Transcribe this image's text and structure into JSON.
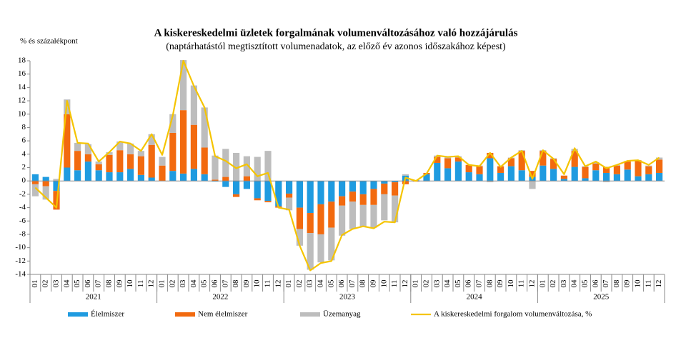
{
  "chart_data": {
    "type": "bar",
    "stacked": true,
    "title": "A kiskereskedelmi üzletek forgalmának volumenváltozásához való hozzájárulás",
    "subtitle": "(naptárhatástól megtisztított volumenadatok, az előző év azonos időszakához képest)",
    "y_label": "% és százalékpont",
    "years": [
      "2021",
      "2022",
      "2023",
      "2024",
      "2025"
    ],
    "categories": [
      "01",
      "02",
      "03",
      "04",
      "05",
      "06",
      "07",
      "08",
      "09",
      "10",
      "11",
      "12",
      "01",
      "02",
      "03",
      "04",
      "05",
      "06",
      "07",
      "08",
      "09",
      "10",
      "11",
      "12",
      "01",
      "02",
      "03",
      "04",
      "05",
      "06",
      "07",
      "08",
      "09",
      "10",
      "11",
      "12",
      "01",
      "02",
      "03",
      "04",
      "05",
      "06",
      "07",
      "08",
      "09",
      "10",
      "11",
      "12",
      "01",
      "02",
      "03",
      "04",
      "05",
      "06",
      "07",
      "08",
      "09",
      "10",
      "11",
      "12"
    ],
    "ylim": [
      -14,
      18
    ],
    "yticks": [
      -14,
      -12,
      -10,
      -8,
      -6,
      -4,
      -2,
      0,
      2,
      4,
      6,
      8,
      10,
      12,
      14,
      16,
      18
    ],
    "grid": false,
    "legend": "bottom",
    "series": [
      {
        "name": "Élelmiszer",
        "color": "#1f9be0",
        "values": [
          1.0,
          0.6,
          -1.5,
          2.0,
          1.6,
          2.9,
          1.6,
          1.3,
          1.3,
          1.8,
          0.9,
          0.5,
          0.0,
          1.5,
          1.1,
          1.8,
          1.0,
          -0.1,
          -0.9,
          -2.0,
          -1.2,
          -2.6,
          -3.0,
          -3.8,
          -1.9,
          -4.0,
          -4.8,
          -3.5,
          -3.1,
          -2.3,
          -1.6,
          -2.0,
          -1.2,
          -0.4,
          -0.2,
          0.8,
          0.1,
          1.0,
          2.7,
          1.9,
          2.9,
          1.3,
          1.0,
          3.4,
          1.2,
          2.2,
          1.6,
          0.6,
          2.3,
          1.8,
          0.3,
          2.1,
          0.4,
          1.6,
          1.2,
          1.0,
          1.7,
          0.7,
          1.0,
          1.2
        ]
      },
      {
        "name": "Nem élelmiszer",
        "color": "#f26a0f",
        "values": [
          -0.5,
          -0.8,
          -2.8,
          8.0,
          2.9,
          1.1,
          0.9,
          2.6,
          3.3,
          2.2,
          2.8,
          4.9,
          2.3,
          5.7,
          9.5,
          6.6,
          4.0,
          0.2,
          0.6,
          -0.4,
          0.7,
          -0.3,
          -0.2,
          -0.2,
          -0.6,
          -3.2,
          -3.0,
          -4.5,
          -3.9,
          -1.4,
          -1.5,
          -1.6,
          -2.4,
          -1.6,
          -2.0,
          -0.5,
          -0.1,
          0.2,
          0.9,
          1.5,
          0.6,
          1.1,
          1.2,
          0.8,
          1.0,
          1.2,
          2.9,
          0.9,
          2.2,
          1.5,
          0.5,
          2.4,
          1.7,
          1.0,
          0.9,
          1.3,
          1.2,
          2.4,
          1.2,
          2.0
        ]
      },
      {
        "name": "Üzemanyag",
        "color": "#bdbdbd",
        "values": [
          -1.8,
          -2.0,
          0.3,
          2.2,
          1.2,
          1.5,
          0.4,
          0.4,
          1.3,
          1.6,
          0.8,
          1.6,
          1.3,
          2.8,
          7.5,
          5.9,
          6.0,
          3.6,
          4.2,
          4.2,
          3.0,
          3.6,
          4.5,
          0.0,
          -1.9,
          -2.5,
          -5.5,
          -4.2,
          -4.9,
          -4.5,
          -4.1,
          -3.3,
          -3.4,
          -3.9,
          -4.0,
          0.2,
          0.0,
          -0.1,
          0.2,
          0.2,
          0.2,
          0.0,
          0.1,
          -0.2,
          0.0,
          0.1,
          0.1,
          -1.2,
          0.1,
          0.1,
          0.0,
          0.3,
          0.1,
          0.2,
          -0.2,
          0.1,
          0.1,
          0.0,
          0.1,
          0.3
        ]
      },
      {
        "name": "A kiskereskedelmi forgalom volumenváltozása, %",
        "color": "#f5c400",
        "type": "line",
        "values": [
          -1.0,
          -2.5,
          -4.0,
          12.0,
          5.7,
          5.6,
          2.9,
          4.3,
          5.9,
          5.6,
          4.5,
          7.0,
          3.9,
          9.8,
          18.0,
          14.2,
          11.0,
          3.7,
          3.0,
          1.9,
          2.5,
          0.7,
          1.2,
          -4.0,
          -4.3,
          -9.7,
          -13.4,
          -12.3,
          -12.0,
          -8.1,
          -7.2,
          -6.8,
          -7.1,
          -6.1,
          -6.2,
          0.5,
          0.0,
          1.1,
          3.8,
          3.6,
          3.7,
          2.4,
          2.2,
          4.2,
          2.1,
          3.5,
          4.5,
          0.3,
          4.6,
          3.3,
          1.0,
          4.9,
          2.2,
          2.9,
          1.9,
          2.4,
          3.0,
          3.1,
          2.4,
          3.5
        ]
      }
    ]
  }
}
